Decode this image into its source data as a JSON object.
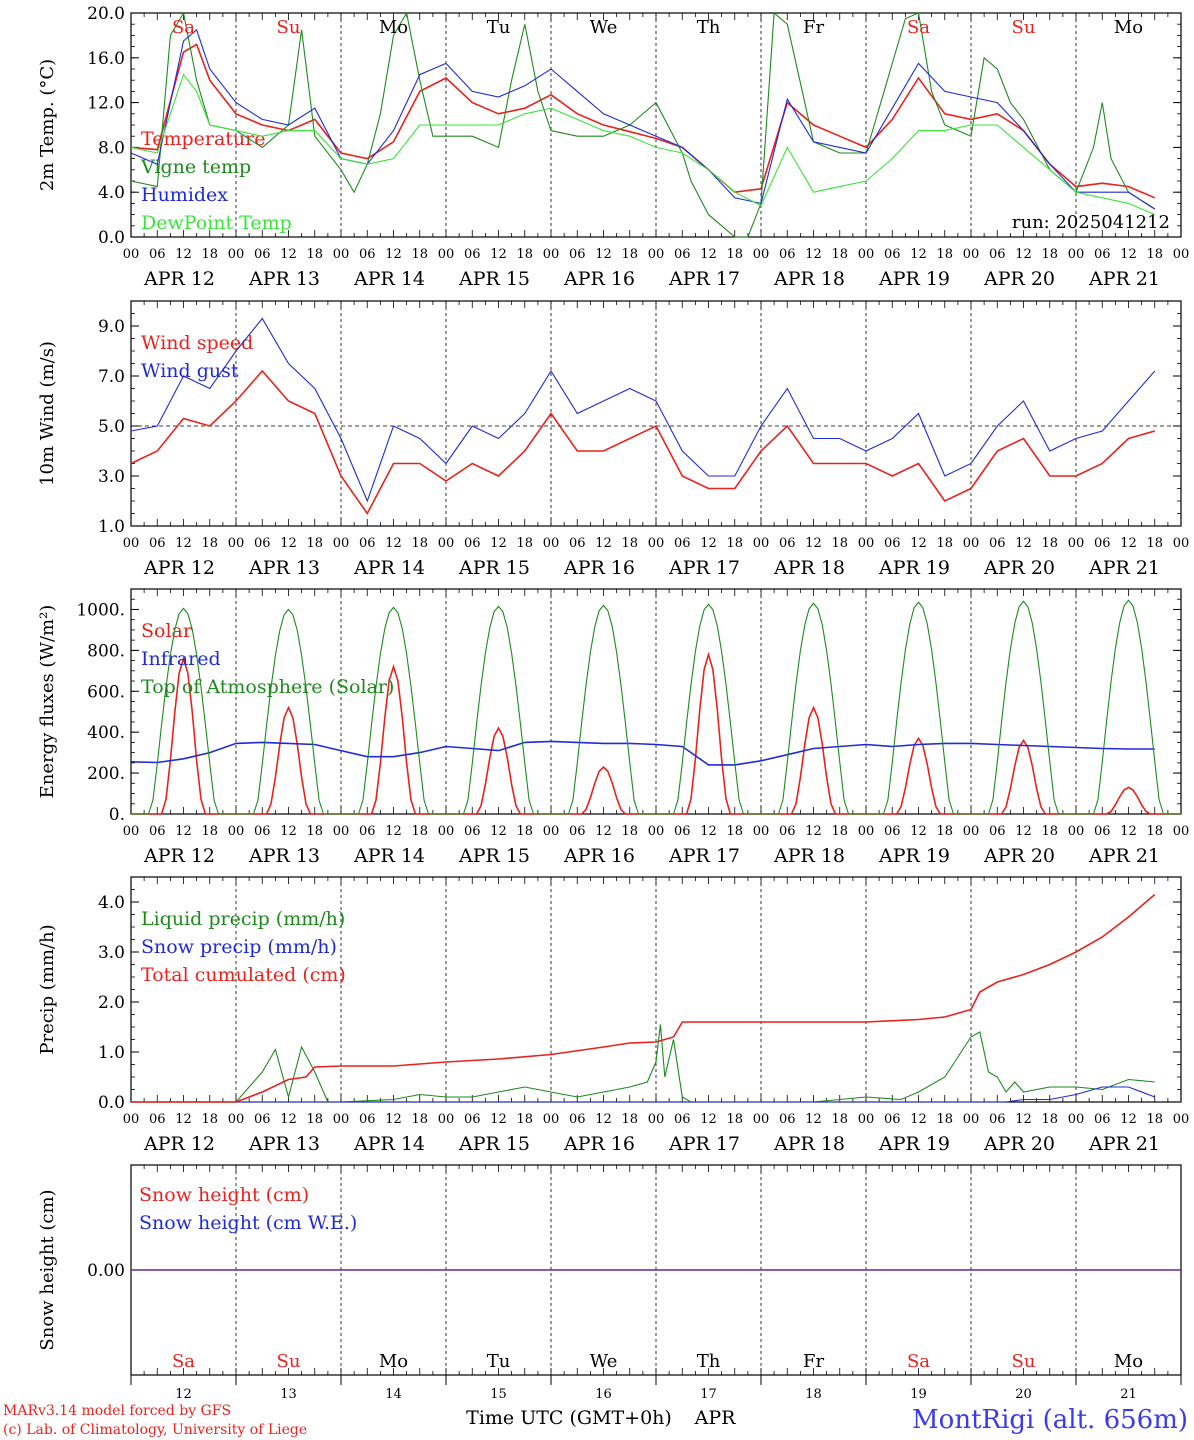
{
  "colors": {
    "red": "#e8221e",
    "green": "#1e8a1e",
    "blue": "#1f2bd6",
    "lightgreen": "#3ae43a",
    "footer_blue": "#3a3aee",
    "axis": "#000000"
  },
  "time_axis": {
    "hour_ticks": [
      "00",
      "06",
      "12",
      "18"
    ],
    "final_hour": "00",
    "day_labels": [
      "APR 12",
      "APR 13",
      "APR 14",
      "APR 15",
      "APR 16",
      "APR 17",
      "APR 18",
      "APR 19",
      "APR 20",
      "APR 21"
    ],
    "weekdays": [
      {
        "label": "Sa",
        "color": "red"
      },
      {
        "label": "Su",
        "color": "red"
      },
      {
        "label": "Mo",
        "color": "black"
      },
      {
        "label": "Tu",
        "color": "black"
      },
      {
        "label": "We",
        "color": "black"
      },
      {
        "label": "Th",
        "color": "black"
      },
      {
        "label": "Fr",
        "color": "black"
      },
      {
        "label": "Sa",
        "color": "red"
      },
      {
        "label": "Su",
        "color": "red"
      },
      {
        "label": "Mo",
        "color": "black"
      }
    ],
    "day_numbers": [
      "12",
      "13",
      "14",
      "15",
      "16",
      "17",
      "18",
      "19",
      "20",
      "21"
    ],
    "xlabel": "Time UTC (GMT+0h)",
    "month": "APR"
  },
  "footer": {
    "model_line": "MARv3.14 model forced by GFS",
    "credit_line": "(c) Lab. of Climatology, University of Liege",
    "station": "MontRigi (alt. 656m)"
  },
  "chart_data": [
    {
      "type": "line",
      "ylabel": "2m Temp. (°C)",
      "ylim": [
        0,
        20
      ],
      "yticks": [
        "0.0",
        "4.0",
        "8.0",
        "12.0",
        "16.0",
        "20.0"
      ],
      "annotation": "run: 2025041212",
      "x_unit": "hours since APR 12 00 UTC",
      "series": [
        {
          "name": "Temperature",
          "color": "red",
          "x": [
            0,
            6,
            12,
            15,
            18,
            24,
            30,
            36,
            42,
            48,
            54,
            60,
            66,
            72,
            78,
            84,
            90,
            96,
            102,
            108,
            114,
            120,
            126,
            132,
            138,
            144,
            150,
            156,
            162,
            168,
            174,
            180,
            186,
            192,
            198,
            204,
            210,
            216,
            222,
            228,
            234
          ],
          "values": [
            8.0,
            7.8,
            16.5,
            17.2,
            14.0,
            11.0,
            10.0,
            9.5,
            10.5,
            7.5,
            7.0,
            8.5,
            13.0,
            14.2,
            12.0,
            11.0,
            11.5,
            12.7,
            11.0,
            10.0,
            9.4,
            8.8,
            8.0,
            6.0,
            4.0,
            4.3,
            12.0,
            10.0,
            9.0,
            8.0,
            10.5,
            14.2,
            11.0,
            10.5,
            11.0,
            9.5,
            6.5,
            4.5,
            4.8,
            4.5,
            3.5
          ]
        },
        {
          "name": "Vigne temp",
          "color": "green",
          "x": [
            0,
            6,
            9,
            12,
            15,
            18,
            24,
            30,
            36,
            39,
            42,
            48,
            51,
            54,
            57,
            60,
            63,
            66,
            69,
            72,
            78,
            84,
            87,
            90,
            93,
            96,
            102,
            108,
            114,
            120,
            126,
            128,
            132,
            138,
            141,
            144,
            147,
            150,
            156,
            162,
            168,
            174,
            177,
            180,
            183,
            186,
            192,
            195,
            198,
            201,
            204,
            210,
            216,
            220,
            222,
            224,
            228,
            234
          ],
          "values": [
            5.0,
            4.5,
            18.0,
            20.0,
            14.0,
            10.0,
            9.5,
            8.0,
            10.0,
            18.5,
            9.0,
            6.0,
            4.0,
            6.5,
            11.0,
            18.0,
            20.0,
            14.0,
            9.0,
            9.0,
            9.0,
            8.0,
            14.0,
            19.0,
            13.0,
            9.5,
            9.0,
            9.0,
            10.0,
            12.0,
            7.5,
            5.0,
            2.0,
            0.0,
            -1.0,
            3.0,
            20.0,
            19.0,
            8.5,
            7.5,
            7.5,
            15.5,
            19.5,
            20.0,
            13.0,
            10.0,
            9.0,
            16.0,
            15.0,
            12.0,
            10.5,
            6.0,
            4.0,
            8.0,
            12.0,
            7.0,
            4.0,
            2.5
          ]
        },
        {
          "name": "Humidex",
          "color": "blue",
          "x": [
            0,
            6,
            12,
            15,
            18,
            24,
            30,
            36,
            42,
            48,
            54,
            60,
            66,
            72,
            78,
            84,
            90,
            96,
            102,
            108,
            114,
            120,
            126,
            132,
            138,
            144,
            150,
            156,
            162,
            168,
            174,
            180,
            186,
            192,
            198,
            204,
            210,
            216,
            222,
            228,
            234
          ],
          "values": [
            7.5,
            6.5,
            17.5,
            18.5,
            15.0,
            12.0,
            10.5,
            10.0,
            11.5,
            7.0,
            6.5,
            9.5,
            14.5,
            15.5,
            13.0,
            12.5,
            13.5,
            15.0,
            13.0,
            11.0,
            10.0,
            9.0,
            8.0,
            6.0,
            3.5,
            3.0,
            12.3,
            8.5,
            8.0,
            7.5,
            11.5,
            15.5,
            13.0,
            12.5,
            12.0,
            9.5,
            6.5,
            4.0,
            4.0,
            4.0,
            2.5
          ]
        },
        {
          "name": "DewPoint Temp",
          "color": "lightgreen",
          "x": [
            0,
            6,
            12,
            15,
            18,
            24,
            30,
            36,
            42,
            48,
            54,
            60,
            66,
            72,
            78,
            84,
            90,
            96,
            102,
            108,
            114,
            120,
            126,
            132,
            138,
            144,
            150,
            156,
            162,
            168,
            174,
            180,
            186,
            192,
            198,
            204,
            210,
            216,
            222,
            228,
            234
          ],
          "values": [
            8.0,
            7.5,
            14.5,
            13.0,
            10.0,
            9.5,
            9.0,
            9.5,
            9.5,
            7.0,
            6.5,
            7.0,
            10.0,
            10.0,
            10.0,
            10.0,
            11.0,
            11.5,
            10.5,
            9.5,
            9.0,
            8.0,
            7.5,
            6.0,
            4.0,
            2.8,
            8.0,
            4.0,
            4.5,
            5.0,
            7.0,
            9.5,
            9.5,
            10.0,
            10.0,
            8.0,
            6.0,
            4.0,
            3.5,
            3.0,
            2.0
          ]
        }
      ]
    },
    {
      "type": "line",
      "ylabel": "10m Wind (m/s)",
      "ylim": [
        1,
        10
      ],
      "yticks": [
        "1.0",
        "3.0",
        "5.0",
        "7.0",
        "9.0"
      ],
      "reference_line": 5.0,
      "x_unit": "hours since APR 12 00 UTC",
      "series": [
        {
          "name": "Wind speed",
          "color": "red",
          "x": [
            0,
            6,
            12,
            18,
            24,
            30,
            36,
            42,
            48,
            54,
            60,
            66,
            72,
            78,
            84,
            90,
            96,
            102,
            108,
            114,
            120,
            126,
            132,
            138,
            144,
            150,
            156,
            162,
            168,
            174,
            180,
            186,
            192,
            198,
            204,
            210,
            216,
            222,
            228,
            234
          ],
          "values": [
            3.5,
            4.0,
            5.3,
            5.0,
            6.0,
            7.2,
            6.0,
            5.5,
            3.0,
            1.5,
            3.5,
            3.5,
            2.8,
            3.5,
            3.0,
            4.0,
            5.5,
            4.0,
            4.0,
            4.5,
            5.0,
            3.0,
            2.5,
            2.5,
            4.0,
            5.0,
            3.5,
            3.5,
            3.5,
            3.0,
            3.5,
            2.0,
            2.5,
            4.0,
            4.5,
            3.0,
            3.0,
            3.5,
            4.5,
            4.8
          ]
        },
        {
          "name": "Wind gust",
          "color": "blue",
          "x": [
            0,
            6,
            12,
            18,
            24,
            30,
            36,
            42,
            48,
            54,
            60,
            66,
            72,
            78,
            84,
            90,
            96,
            102,
            108,
            114,
            120,
            126,
            132,
            138,
            144,
            150,
            156,
            162,
            168,
            174,
            180,
            186,
            192,
            198,
            204,
            210,
            216,
            222,
            228,
            234
          ],
          "values": [
            4.8,
            5.0,
            7.0,
            6.5,
            8.0,
            9.3,
            7.5,
            6.5,
            4.5,
            2.0,
            5.0,
            4.5,
            3.5,
            5.0,
            4.5,
            5.5,
            7.2,
            5.5,
            6.0,
            6.5,
            6.0,
            4.0,
            3.0,
            3.0,
            5.0,
            6.5,
            4.5,
            4.5,
            4.0,
            4.5,
            5.5,
            3.0,
            3.5,
            5.0,
            6.0,
            4.0,
            4.5,
            4.8,
            6.0,
            7.2
          ]
        }
      ]
    },
    {
      "type": "line",
      "ylabel": "Energy fluxes (W/m²)",
      "ylim": [
        0,
        1100
      ],
      "yticks": [
        "0.",
        "200.",
        "400.",
        "600.",
        "800.",
        "1000."
      ],
      "x_unit": "hours since APR 12 00 UTC",
      "series": [
        {
          "name": "Solar",
          "color": "red",
          "daily_peaks": [
            760,
            520,
            720,
            420,
            230,
            780,
            520,
            370,
            360,
            130
          ]
        },
        {
          "name": "Infrared",
          "color": "blue",
          "x": [
            0,
            6,
            12,
            18,
            24,
            30,
            36,
            42,
            48,
            54,
            60,
            66,
            72,
            78,
            84,
            90,
            96,
            102,
            108,
            114,
            120,
            126,
            132,
            138,
            144,
            150,
            156,
            162,
            168,
            174,
            180,
            186,
            192,
            198,
            204,
            210,
            216,
            222,
            228,
            234
          ],
          "values": [
            255,
            252,
            270,
            300,
            345,
            350,
            345,
            340,
            310,
            280,
            280,
            300,
            330,
            320,
            310,
            350,
            355,
            350,
            345,
            345,
            340,
            330,
            240,
            240,
            260,
            290,
            320,
            330,
            340,
            330,
            340,
            345,
            345,
            340,
            335,
            330,
            325,
            320,
            318,
            318
          ]
        },
        {
          "name": "Top of Atmosphere (Solar)",
          "color": "green",
          "daily_peaks": [
            1005,
            1000,
            1010,
            1015,
            1020,
            1025,
            1030,
            1035,
            1040,
            1045
          ]
        }
      ]
    },
    {
      "type": "line",
      "ylabel": "Precip (mm/h)",
      "ylim": [
        0,
        4.5
      ],
      "yticks": [
        "0.0",
        "1.0",
        "2.0",
        "3.0",
        "4.0"
      ],
      "x_unit": "hours since APR 12 00 UTC",
      "series": [
        {
          "name": "Liquid precip (mm/h)",
          "color": "green",
          "x": [
            0,
            24,
            27,
            30,
            33,
            36,
            39,
            42,
            45,
            48,
            60,
            66,
            72,
            78,
            84,
            90,
            96,
            102,
            108,
            114,
            118,
            120,
            121,
            122,
            124,
            126,
            128,
            132,
            156,
            168,
            176,
            180,
            186,
            192,
            194,
            196,
            198,
            200,
            202,
            204,
            210,
            216,
            222,
            228,
            234
          ],
          "values": [
            0,
            0,
            0.3,
            0.6,
            1.05,
            0.1,
            1.1,
            0.6,
            0,
            0,
            0.05,
            0.15,
            0.1,
            0.1,
            0.2,
            0.3,
            0.2,
            0.1,
            0.2,
            0.3,
            0.4,
            0.8,
            1.55,
            0.5,
            1.25,
            0.1,
            0,
            0,
            0,
            0.1,
            0.05,
            0.2,
            0.5,
            1.3,
            1.4,
            0.6,
            0.5,
            0.2,
            0.4,
            0.2,
            0.3,
            0.3,
            0.25,
            0.45,
            0.4
          ]
        },
        {
          "name": "Snow precip (mm/h)",
          "color": "blue",
          "x": [
            0,
            200,
            204,
            210,
            216,
            222,
            228,
            234
          ],
          "values": [
            0,
            0,
            0.05,
            0.05,
            0.15,
            0.3,
            0.3,
            0.1
          ]
        },
        {
          "name": "Total cumulated (cm)",
          "color": "red",
          "x": [
            0,
            24,
            30,
            36,
            40,
            42,
            48,
            60,
            72,
            84,
            96,
            108,
            114,
            120,
            124,
            126,
            132,
            156,
            168,
            180,
            186,
            192,
            194,
            198,
            204,
            210,
            216,
            222,
            228,
            234
          ],
          "values": [
            0,
            0,
            0.2,
            0.45,
            0.5,
            0.7,
            0.72,
            0.72,
            0.8,
            0.86,
            0.95,
            1.1,
            1.18,
            1.2,
            1.3,
            1.6,
            1.6,
            1.6,
            1.6,
            1.65,
            1.7,
            1.85,
            2.2,
            2.4,
            2.55,
            2.75,
            3.0,
            3.3,
            3.7,
            4.15
          ]
        }
      ]
    },
    {
      "type": "line",
      "ylabel": "Snow height (cm)",
      "ylim": [
        -1,
        1
      ],
      "yticks": [
        "0.00"
      ],
      "x_unit": "hours since APR 12 00 UTC",
      "series": [
        {
          "name": "Snow height (cm)",
          "color": "red",
          "x": [
            0,
            240
          ],
          "values": [
            0,
            0
          ]
        },
        {
          "name": "Snow height (cm W.E.)",
          "color": "blue",
          "x": [
            0,
            240
          ],
          "values": [
            0,
            0
          ]
        }
      ]
    }
  ]
}
